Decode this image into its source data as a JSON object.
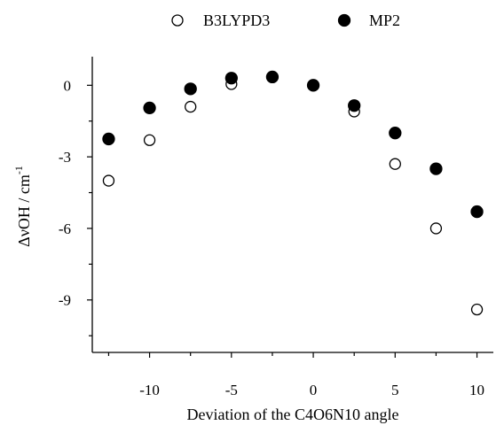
{
  "chart_data": {
    "type": "scatter",
    "title": "",
    "xlabel": "Deviation of the C4O6N10 angle",
    "ylabel": "ΔνOH / cm",
    "ylabel_superscript": "-1",
    "xlim": [
      -13.5,
      11
    ],
    "ylim": [
      -11.2,
      1.2
    ],
    "x_ticks": [
      -10,
      -5,
      0,
      5,
      10
    ],
    "y_ticks": [
      0,
      -3,
      -6,
      -9
    ],
    "legend_position": "top",
    "series": [
      {
        "name": "B3LYPD3",
        "marker": "open-circle",
        "points": [
          {
            "x": -12.5,
            "y": -4.0
          },
          {
            "x": -10,
            "y": -2.3
          },
          {
            "x": -7.5,
            "y": -0.9
          },
          {
            "x": -5,
            "y": 0.05
          },
          {
            "x": -2.5,
            "y": 0.35
          },
          {
            "x": 0,
            "y": 0.0
          },
          {
            "x": 2.5,
            "y": -1.1
          },
          {
            "x": 5,
            "y": -3.3
          },
          {
            "x": 7.5,
            "y": -6.0
          },
          {
            "x": 10,
            "y": -9.4
          }
        ]
      },
      {
        "name": "MP2",
        "marker": "filled-circle",
        "points": [
          {
            "x": -12.5,
            "y": -2.25
          },
          {
            "x": -10,
            "y": -0.95
          },
          {
            "x": -7.5,
            "y": -0.15
          },
          {
            "x": -5,
            "y": 0.3
          },
          {
            "x": -2.5,
            "y": 0.35
          },
          {
            "x": 0,
            "y": 0.0
          },
          {
            "x": 2.5,
            "y": -0.85
          },
          {
            "x": 5,
            "y": -2.0
          },
          {
            "x": 7.5,
            "y": -3.5
          },
          {
            "x": 10,
            "y": -5.3
          }
        ]
      }
    ]
  }
}
